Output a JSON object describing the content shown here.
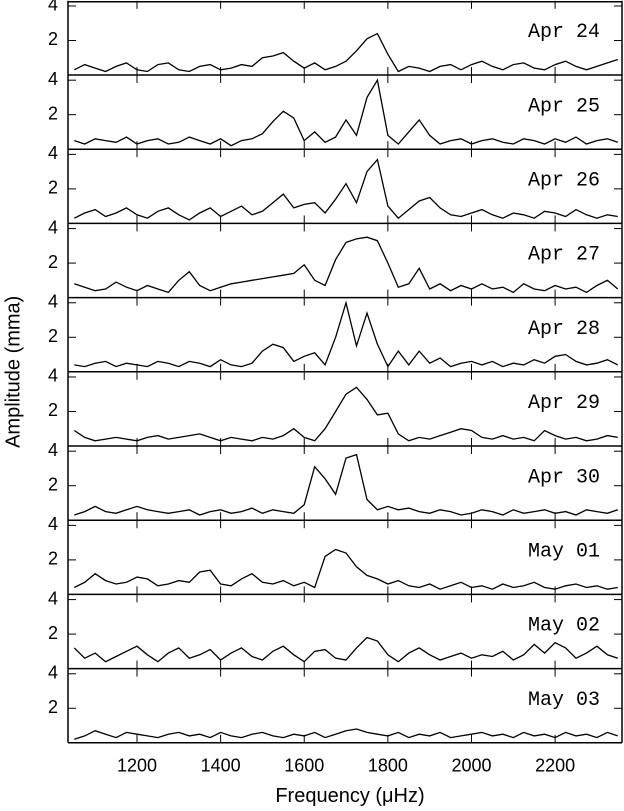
{
  "chart_data": [
    {
      "type": "line",
      "label": "Apr 24",
      "ylabel": "Amplitude (mma)",
      "xlim": [
        1035,
        2360
      ],
      "ylim": [
        0,
        4.3
      ],
      "yticks": [
        2,
        4
      ],
      "xticks": [
        1200,
        1400,
        1600,
        1800,
        2000,
        2200
      ],
      "color": "#000000",
      "x": [
        1050,
        1075,
        1100,
        1125,
        1150,
        1175,
        1200,
        1225,
        1250,
        1275,
        1300,
        1325,
        1350,
        1375,
        1400,
        1425,
        1450,
        1475,
        1500,
        1525,
        1550,
        1575,
        1600,
        1625,
        1650,
        1675,
        1700,
        1725,
        1750,
        1775,
        1800,
        1825,
        1850,
        1875,
        1900,
        1925,
        1950,
        1975,
        2000,
        2025,
        2050,
        2075,
        2100,
        2125,
        2150,
        2175,
        2200,
        2225,
        2250,
        2275,
        2300,
        2325,
        2350
      ],
      "values": [
        0.3,
        0.6,
        0.4,
        0.2,
        0.5,
        0.7,
        0.3,
        0.2,
        0.6,
        0.7,
        0.3,
        0.2,
        0.5,
        0.6,
        0.3,
        0.4,
        0.6,
        0.5,
        1.0,
        1.1,
        1.3,
        0.8,
        0.4,
        0.7,
        0.3,
        0.5,
        0.8,
        1.4,
        2.1,
        2.4,
        1.2,
        0.2,
        0.5,
        0.4,
        0.2,
        0.5,
        0.6,
        0.3,
        0.6,
        0.8,
        0.5,
        0.3,
        0.6,
        0.7,
        0.4,
        0.3,
        0.6,
        0.8,
        0.5,
        0.3,
        0.5,
        0.7,
        0.9
      ]
    },
    {
      "type": "line",
      "label": "Apr 25",
      "xlim": [
        1035,
        2360
      ],
      "ylim": [
        0,
        4.3
      ],
      "yticks": [
        2,
        4
      ],
      "xticks": [
        1200,
        1400,
        1600,
        1800,
        2000,
        2200
      ],
      "color": "#000000",
      "x": [
        1050,
        1075,
        1100,
        1125,
        1150,
        1175,
        1200,
        1225,
        1250,
        1275,
        1300,
        1325,
        1350,
        1375,
        1400,
        1425,
        1450,
        1475,
        1500,
        1525,
        1550,
        1575,
        1600,
        1625,
        1650,
        1675,
        1700,
        1725,
        1750,
        1775,
        1800,
        1825,
        1850,
        1875,
        1900,
        1925,
        1950,
        1975,
        2000,
        2025,
        2050,
        2075,
        2100,
        2125,
        2150,
        2175,
        2200,
        2225,
        2250,
        2275,
        2300,
        2325,
        2350
      ],
      "values": [
        0.5,
        0.3,
        0.6,
        0.5,
        0.4,
        0.7,
        0.3,
        0.5,
        0.6,
        0.3,
        0.4,
        0.7,
        0.5,
        0.3,
        0.6,
        0.2,
        0.5,
        0.6,
        0.9,
        1.6,
        2.2,
        1.8,
        0.5,
        1.0,
        0.4,
        0.7,
        1.7,
        0.8,
        3.0,
        4.0,
        0.8,
        0.3,
        1.0,
        1.7,
        0.8,
        0.3,
        0.5,
        0.6,
        0.3,
        0.5,
        0.6,
        0.4,
        0.3,
        0.6,
        0.5,
        0.3,
        0.6,
        0.4,
        0.7,
        0.3,
        0.5,
        0.6,
        0.4
      ]
    },
    {
      "type": "line",
      "label": "Apr 26",
      "xlim": [
        1035,
        2360
      ],
      "ylim": [
        0,
        4.3
      ],
      "yticks": [
        2,
        4
      ],
      "xticks": [
        1200,
        1400,
        1600,
        1800,
        2000,
        2200
      ],
      "color": "#000000",
      "x": [
        1050,
        1075,
        1100,
        1125,
        1150,
        1175,
        1200,
        1225,
        1250,
        1275,
        1300,
        1325,
        1350,
        1375,
        1400,
        1425,
        1450,
        1475,
        1500,
        1525,
        1550,
        1575,
        1600,
        1625,
        1650,
        1675,
        1700,
        1725,
        1750,
        1775,
        1800,
        1825,
        1850,
        1875,
        1900,
        1925,
        1950,
        1975,
        2000,
        2025,
        2050,
        2075,
        2100,
        2125,
        2150,
        2175,
        2200,
        2225,
        2250,
        2275,
        2300,
        2325,
        2350
      ],
      "values": [
        0.3,
        0.6,
        0.8,
        0.4,
        0.6,
        0.9,
        0.5,
        0.3,
        0.7,
        0.9,
        0.5,
        0.2,
        0.6,
        0.9,
        0.4,
        0.7,
        1.0,
        0.5,
        0.7,
        1.2,
        1.7,
        0.9,
        1.1,
        1.2,
        0.6,
        1.4,
        2.3,
        1.2,
        3.0,
        3.7,
        1.0,
        0.3,
        0.8,
        1.3,
        1.5,
        0.9,
        0.5,
        0.4,
        0.6,
        0.8,
        0.5,
        0.3,
        0.6,
        0.5,
        0.3,
        0.7,
        0.6,
        0.4,
        0.8,
        0.5,
        0.3,
        0.5,
        0.4
      ]
    },
    {
      "type": "line",
      "label": "Apr 27",
      "xlim": [
        1035,
        2360
      ],
      "ylim": [
        0,
        4.3
      ],
      "yticks": [
        2,
        4
      ],
      "xticks": [
        1200,
        1400,
        1600,
        1800,
        2000,
        2200
      ],
      "color": "#000000",
      "x": [
        1050,
        1075,
        1100,
        1125,
        1150,
        1175,
        1200,
        1225,
        1250,
        1275,
        1300,
        1325,
        1350,
        1375,
        1400,
        1425,
        1450,
        1475,
        1500,
        1525,
        1550,
        1575,
        1600,
        1625,
        1650,
        1675,
        1700,
        1725,
        1750,
        1775,
        1800,
        1825,
        1850,
        1875,
        1900,
        1925,
        1950,
        1975,
        2000,
        2025,
        2050,
        2075,
        2100,
        2125,
        2150,
        2175,
        2200,
        2225,
        2250,
        2275,
        2300,
        2325,
        2350
      ],
      "values": [
        0.8,
        0.6,
        0.4,
        0.5,
        0.9,
        0.6,
        0.4,
        0.7,
        0.5,
        0.3,
        1.0,
        1.5,
        0.7,
        0.4,
        0.6,
        0.8,
        0.9,
        1.0,
        1.1,
        1.2,
        1.3,
        1.4,
        1.9,
        1.0,
        0.7,
        2.2,
        3.2,
        3.4,
        3.5,
        3.3,
        2.0,
        0.6,
        0.8,
        1.7,
        0.5,
        0.8,
        0.4,
        0.7,
        0.5,
        0.8,
        0.5,
        0.6,
        0.3,
        0.8,
        0.5,
        0.4,
        0.7,
        0.5,
        0.6,
        0.3,
        0.7,
        1.0,
        0.5
      ]
    },
    {
      "type": "line",
      "label": "Apr 28",
      "xlim": [
        1035,
        2360
      ],
      "ylim": [
        0,
        4.3
      ],
      "yticks": [
        2,
        4
      ],
      "xticks": [
        1200,
        1400,
        1600,
        1800,
        2000,
        2200
      ],
      "color": "#000000",
      "x": [
        1050,
        1075,
        1100,
        1125,
        1150,
        1175,
        1200,
        1225,
        1250,
        1275,
        1300,
        1325,
        1350,
        1375,
        1400,
        1425,
        1450,
        1475,
        1500,
        1525,
        1550,
        1575,
        1600,
        1625,
        1650,
        1675,
        1700,
        1725,
        1750,
        1775,
        1800,
        1825,
        1850,
        1875,
        1900,
        1925,
        1950,
        1975,
        2000,
        2025,
        2050,
        2075,
        2100,
        2125,
        2150,
        2175,
        2200,
        2225,
        2250,
        2275,
        2300,
        2325,
        2350
      ],
      "values": [
        0.4,
        0.3,
        0.5,
        0.6,
        0.3,
        0.5,
        0.4,
        0.3,
        0.6,
        0.5,
        0.3,
        0.6,
        0.5,
        0.3,
        0.7,
        0.4,
        0.3,
        0.5,
        1.2,
        1.6,
        1.4,
        0.6,
        0.9,
        1.1,
        0.4,
        2.0,
        4.0,
        1.5,
        3.4,
        1.6,
        0.3,
        1.2,
        0.4,
        1.2,
        0.5,
        0.8,
        0.3,
        0.5,
        0.6,
        0.4,
        0.6,
        0.3,
        0.5,
        0.4,
        0.7,
        0.5,
        0.9,
        1.0,
        0.6,
        0.4,
        0.5,
        0.7,
        0.4
      ]
    },
    {
      "type": "line",
      "label": "Apr 29",
      "xlim": [
        1035,
        2360
      ],
      "ylim": [
        0,
        4.3
      ],
      "yticks": [
        2,
        4
      ],
      "xticks": [
        1200,
        1400,
        1600,
        1800,
        2000,
        2200
      ],
      "color": "#000000",
      "x": [
        1050,
        1075,
        1100,
        1125,
        1150,
        1175,
        1200,
        1225,
        1250,
        1275,
        1300,
        1325,
        1350,
        1375,
        1400,
        1425,
        1450,
        1475,
        1500,
        1525,
        1550,
        1575,
        1600,
        1625,
        1650,
        1675,
        1700,
        1725,
        1750,
        1775,
        1800,
        1825,
        1850,
        1875,
        1900,
        1925,
        1950,
        1975,
        2000,
        2025,
        2050,
        2075,
        2100,
        2125,
        2150,
        2175,
        2200,
        2225,
        2250,
        2275,
        2300,
        2325,
        2350
      ],
      "values": [
        0.9,
        0.5,
        0.3,
        0.4,
        0.5,
        0.4,
        0.3,
        0.5,
        0.6,
        0.4,
        0.5,
        0.6,
        0.7,
        0.5,
        0.3,
        0.5,
        0.4,
        0.3,
        0.5,
        0.4,
        0.6,
        1.0,
        0.5,
        0.3,
        1.0,
        2.0,
        3.0,
        3.4,
        2.7,
        1.8,
        1.9,
        0.7,
        0.3,
        0.5,
        0.4,
        0.6,
        0.8,
        1.0,
        0.9,
        0.5,
        0.4,
        0.6,
        0.4,
        0.5,
        0.3,
        0.9,
        0.6,
        0.4,
        0.5,
        0.3,
        0.4,
        0.6,
        0.5
      ]
    },
    {
      "type": "line",
      "label": "Apr 30",
      "xlim": [
        1035,
        2360
      ],
      "ylim": [
        0,
        4.3
      ],
      "yticks": [
        2,
        4
      ],
      "xticks": [
        1200,
        1400,
        1600,
        1800,
        2000,
        2200
      ],
      "color": "#000000",
      "x": [
        1050,
        1075,
        1100,
        1125,
        1150,
        1175,
        1200,
        1225,
        1250,
        1275,
        1300,
        1325,
        1350,
        1375,
        1400,
        1425,
        1450,
        1475,
        1500,
        1525,
        1550,
        1575,
        1600,
        1625,
        1650,
        1675,
        1700,
        1725,
        1750,
        1775,
        1800,
        1825,
        1850,
        1875,
        1900,
        1925,
        1950,
        1975,
        2000,
        2025,
        2050,
        2075,
        2100,
        2125,
        2150,
        2175,
        2200,
        2225,
        2250,
        2275,
        2300,
        2325,
        2350
      ],
      "values": [
        0.3,
        0.5,
        0.8,
        0.5,
        0.4,
        0.6,
        0.8,
        0.6,
        0.5,
        0.4,
        0.5,
        0.6,
        0.3,
        0.5,
        0.6,
        0.4,
        0.5,
        0.7,
        0.4,
        0.6,
        0.5,
        0.4,
        0.9,
        3.1,
        2.4,
        1.5,
        3.6,
        3.8,
        1.2,
        0.6,
        0.8,
        0.6,
        0.7,
        0.5,
        0.4,
        0.6,
        0.5,
        0.3,
        0.4,
        0.6,
        0.5,
        0.3,
        0.6,
        0.4,
        0.5,
        0.6,
        0.4,
        0.5,
        0.3,
        0.6,
        0.5,
        0.4,
        0.6
      ]
    },
    {
      "type": "line",
      "label": "May 01",
      "xlim": [
        1035,
        2360
      ],
      "ylim": [
        0,
        4.3
      ],
      "yticks": [
        2,
        4
      ],
      "xticks": [
        1200,
        1400,
        1600,
        1800,
        2000,
        2200
      ],
      "color": "#000000",
      "x": [
        1050,
        1075,
        1100,
        1125,
        1150,
        1175,
        1200,
        1225,
        1250,
        1275,
        1300,
        1325,
        1350,
        1375,
        1400,
        1425,
        1450,
        1475,
        1500,
        1525,
        1550,
        1575,
        1600,
        1625,
        1650,
        1675,
        1700,
        1725,
        1750,
        1775,
        1800,
        1825,
        1850,
        1875,
        1900,
        1925,
        1950,
        1975,
        2000,
        2025,
        2050,
        2075,
        2100,
        2125,
        2150,
        2175,
        2200,
        2225,
        2250,
        2275,
        2300,
        2325,
        2350
      ],
      "values": [
        0.4,
        0.7,
        1.2,
        0.8,
        0.6,
        0.7,
        1.0,
        0.9,
        0.5,
        0.6,
        0.8,
        0.7,
        1.3,
        1.4,
        0.6,
        0.5,
        0.9,
        1.2,
        0.7,
        0.6,
        0.8,
        0.5,
        0.7,
        0.4,
        2.2,
        2.6,
        2.4,
        1.6,
        1.1,
        0.9,
        0.6,
        0.8,
        0.5,
        0.4,
        0.6,
        0.3,
        0.5,
        0.7,
        0.4,
        0.5,
        0.3,
        0.6,
        0.4,
        0.5,
        0.7,
        0.4,
        0.3,
        0.5,
        0.6,
        0.4,
        0.5,
        0.3,
        0.4
      ]
    },
    {
      "type": "line",
      "label": "May 02",
      "xlim": [
        1035,
        2360
      ],
      "ylim": [
        0,
        4.3
      ],
      "yticks": [
        2,
        4
      ],
      "xticks": [
        1200,
        1400,
        1600,
        1800,
        2000,
        2200
      ],
      "color": "#000000",
      "x": [
        1050,
        1075,
        1100,
        1125,
        1150,
        1175,
        1200,
        1225,
        1250,
        1275,
        1300,
        1325,
        1350,
        1375,
        1400,
        1425,
        1450,
        1475,
        1500,
        1525,
        1550,
        1575,
        1600,
        1625,
        1650,
        1675,
        1700,
        1725,
        1750,
        1775,
        1800,
        1825,
        1850,
        1875,
        1900,
        1925,
        1950,
        1975,
        2000,
        2025,
        2050,
        2075,
        2100,
        2125,
        2150,
        2175,
        2200,
        2225,
        2250,
        2275,
        2300,
        2325,
        2350
      ],
      "values": [
        1.2,
        0.6,
        0.9,
        0.4,
        0.7,
        1.0,
        1.3,
        0.8,
        0.4,
        0.9,
        1.2,
        0.6,
        0.8,
        1.1,
        0.5,
        0.9,
        1.2,
        0.7,
        0.5,
        1.0,
        1.3,
        0.8,
        0.4,
        1.0,
        1.1,
        0.6,
        0.5,
        1.2,
        1.8,
        1.6,
        0.8,
        0.4,
        0.9,
        1.2,
        0.8,
        0.5,
        0.7,
        0.9,
        0.6,
        0.8,
        0.7,
        1.0,
        0.5,
        0.8,
        1.4,
        0.9,
        1.5,
        1.2,
        0.6,
        0.9,
        1.3,
        0.8,
        0.6
      ]
    },
    {
      "type": "line",
      "label": "May 03",
      "xlabel": "Frequency (μHz)",
      "xlim": [
        1035,
        2360
      ],
      "ylim": [
        0,
        4.3
      ],
      "yticks": [
        2,
        4
      ],
      "xticks": [
        1200,
        1400,
        1600,
        1800,
        2000,
        2200
      ],
      "color": "#000000",
      "x": [
        1050,
        1075,
        1100,
        1125,
        1150,
        1175,
        1200,
        1225,
        1250,
        1275,
        1300,
        1325,
        1350,
        1375,
        1400,
        1425,
        1450,
        1475,
        1500,
        1525,
        1550,
        1575,
        1600,
        1625,
        1650,
        1675,
        1700,
        1725,
        1750,
        1775,
        1800,
        1825,
        1850,
        1875,
        1900,
        1925,
        1950,
        1975,
        2000,
        2025,
        2050,
        2075,
        2100,
        2125,
        2150,
        2175,
        2200,
        2225,
        2250,
        2275,
        2300,
        2325,
        2350
      ],
      "values": [
        0.2,
        0.4,
        0.7,
        0.5,
        0.3,
        0.6,
        0.5,
        0.4,
        0.3,
        0.5,
        0.6,
        0.4,
        0.5,
        0.3,
        0.6,
        0.4,
        0.3,
        0.5,
        0.6,
        0.4,
        0.3,
        0.5,
        0.4,
        0.6,
        0.3,
        0.5,
        0.7,
        0.8,
        0.6,
        0.5,
        0.4,
        0.6,
        0.3,
        0.5,
        0.4,
        0.6,
        0.3,
        0.4,
        0.5,
        0.6,
        0.4,
        0.5,
        0.3,
        0.6,
        0.4,
        0.5,
        0.3,
        0.6,
        0.4,
        0.5,
        0.3,
        0.6,
        0.4
      ]
    }
  ]
}
